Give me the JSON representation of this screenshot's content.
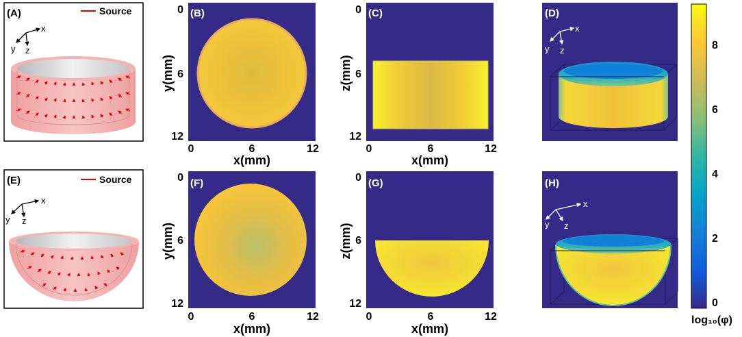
{
  "panels": {
    "A": {
      "label": "(A)",
      "legend": "Source",
      "axes": [
        "x",
        "y",
        "z"
      ]
    },
    "B": {
      "label": "(B)",
      "xlabel": "x(mm)",
      "ylabel": "y(mm)",
      "xticks": [
        "0",
        "6",
        "12"
      ],
      "yticks": [
        "0",
        "6",
        "12"
      ]
    },
    "C": {
      "label": "(C)",
      "xlabel": "x(mm)",
      "ylabel": "z(mm)",
      "xticks": [
        "0",
        "6",
        "12"
      ],
      "yticks": [
        "0",
        "6",
        "12"
      ]
    },
    "D": {
      "label": "(D)",
      "axes": [
        "x",
        "y",
        "z"
      ]
    },
    "E": {
      "label": "(E)",
      "legend": "Source",
      "axes": [
        "x",
        "y",
        "z"
      ]
    },
    "F": {
      "label": "(F)",
      "xlabel": "x(mm)",
      "ylabel": "y(mm)",
      "xticks": [
        "0",
        "6",
        "12"
      ],
      "yticks": [
        "0",
        "6",
        "12"
      ]
    },
    "G": {
      "label": "(G)",
      "xlabel": "x(mm)",
      "ylabel": "z(mm)",
      "xticks": [
        "0",
        "6",
        "12"
      ],
      "yticks": [
        "0",
        "6",
        "12"
      ]
    },
    "H": {
      "label": "(H)",
      "axes": [
        "x",
        "y",
        "z"
      ]
    }
  },
  "colorbar": {
    "label": "log₁₀(φ)",
    "ticks": [
      "0",
      "2",
      "4",
      "6",
      "8"
    ],
    "colors": {
      "low": "#352a87",
      "mid": "#1ab6b8",
      "high": "#f9fb0e"
    }
  }
}
